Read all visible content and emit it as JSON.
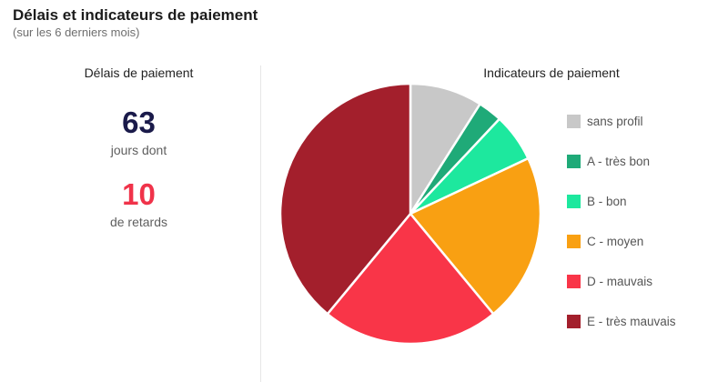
{
  "header": {
    "title": "Délais et indicateurs de paiement",
    "subtitle": "(sur les 6 derniers mois)"
  },
  "payment_delays": {
    "title": "Délais de paiement",
    "days_value": "63",
    "days_caption": "jours dont",
    "late_value": "10",
    "late_caption": "de retards"
  },
  "chart_data": {
    "type": "pie",
    "title": "Indicateurs de paiement",
    "legend_position": "right",
    "categories": [
      "sans profil",
      "A - très bon",
      "B - bon",
      "C - moyen",
      "D - mauvais",
      "E - très mauvais"
    ],
    "values": [
      9,
      3,
      6,
      21,
      22,
      39
    ],
    "colors": [
      "#c8c8c8",
      "#1faa78",
      "#1de89e",
      "#f9a012",
      "#f93548",
      "#a31f2c"
    ]
  }
}
